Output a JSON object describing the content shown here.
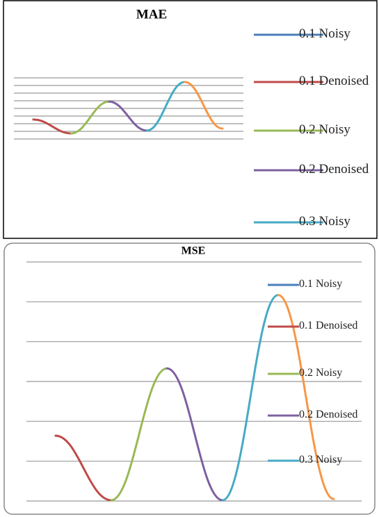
{
  "chart_data": [
    {
      "type": "line",
      "title": "MAE",
      "categories": [
        null,
        null,
        null,
        null,
        null,
        null
      ],
      "ylim": [
        0,
        8
      ],
      "yticks": [
        0,
        1,
        2,
        3,
        4,
        5,
        6,
        7,
        8
      ],
      "grid": true,
      "series": [
        {
          "name": "0.1 Noisy",
          "color": "#4a7ebb",
          "values": [
            2.55,
            null,
            null,
            null,
            null,
            null
          ]
        },
        {
          "name": "0.1 Denoised",
          "color": "#be4b48",
          "values": [
            2.55,
            0.73,
            null,
            null,
            null,
            null
          ]
        },
        {
          "name": "0.2 Noisy",
          "color": "#98b954",
          "values": [
            null,
            0.73,
            4.9,
            null,
            null,
            null
          ]
        },
        {
          "name": "0.2 Denoised",
          "color": "#7d60a0",
          "values": [
            null,
            null,
            4.9,
            1.1,
            null,
            null
          ]
        },
        {
          "name": "0.3 Noisy",
          "color": "#46aac5",
          "values": [
            null,
            null,
            null,
            1.1,
            7.45,
            null
          ]
        },
        {
          "color": "#f79646",
          "values": [
            null,
            null,
            null,
            null,
            7.45,
            1.36
          ]
        }
      ]
    },
    {
      "type": "line",
      "title": "MSE",
      "categories": [
        null,
        null,
        null,
        null,
        null,
        null
      ],
      "ylim": [
        0,
        6
      ],
      "yticks": [
        0,
        1,
        2,
        3,
        4,
        5,
        6
      ],
      "grid": true,
      "series": [
        {
          "name": "0.1 Noisy",
          "color": "#4a7ebb",
          "values": [
            1.64,
            null,
            null,
            null,
            null,
            null
          ]
        },
        {
          "name": "0.1 Denoised",
          "color": "#be4b48",
          "values": [
            1.64,
            0.02,
            null,
            null,
            null,
            null
          ]
        },
        {
          "name": "0.2 Noisy",
          "color": "#98b954",
          "values": [
            null,
            0.02,
            3.33,
            null,
            null,
            null
          ]
        },
        {
          "name": "0.2 Denoised",
          "color": "#7d60a0",
          "values": [
            null,
            null,
            3.33,
            0.02,
            null,
            null
          ]
        },
        {
          "name": "0.3 Noisy",
          "color": "#46aac5",
          "values": [
            null,
            null,
            null,
            0.02,
            5.17,
            null
          ]
        },
        {
          "color": "#f79646",
          "values": [
            null,
            null,
            null,
            null,
            5.17,
            0.05
          ]
        }
      ]
    }
  ]
}
